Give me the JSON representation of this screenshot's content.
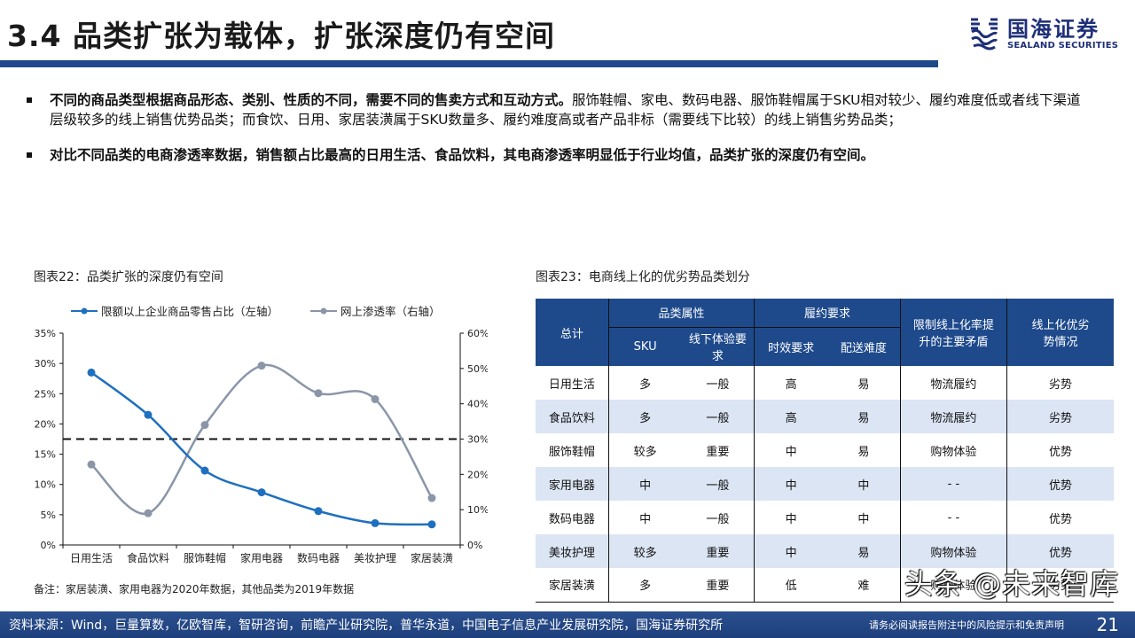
{
  "header": {
    "title": "3.4 品类扩张为载体，扩张深度仍有空间",
    "logo_cn": "国海证券",
    "logo_en": "SEALAND SECURITIES",
    "accent_color": "#1e4a8c"
  },
  "bullets": [
    {
      "bold": "不同的商品类型根据商品形态、类别、性质的不同，需要不同的售卖方式和互动方式。",
      "text": "服饰鞋帽、家电、数码电器、服饰鞋帽属于SKU相对较少、履约难度低或者线下渠道层级较多的线上销售优势品类；而食饮、日用、家居装潢属于SKU数量多、履约难度高或者产品非标（需要线下比较）的线上销售劣势品类；"
    },
    {
      "bold": "对比不同品类的电商渗透率数据，销售额占比最高的日用生活、食品饮料，其电商渗透率明显低于行业均值，品类扩张的深度仍有空间。",
      "text": ""
    }
  ],
  "figure22": {
    "title": "图表22：品类扩张的深度仍有空间",
    "note": "备注：家居装潢、家用电器为2020年数据，其他品类为2019年数据"
  },
  "chart_data": {
    "type": "line",
    "title": "图表22：品类扩张的深度仍有空间",
    "categories": [
      "日用生活",
      "食品饮料",
      "服饰鞋帽",
      "家用电器",
      "数码电器",
      "美妆护理",
      "家居装潢"
    ],
    "series": [
      {
        "name": "限额以上企业商品零售占比（左轴）",
        "axis": "left",
        "color": "#1f6fc0",
        "values": [
          28.5,
          21.5,
          12.3,
          8.7,
          5.6,
          3.6,
          3.4
        ]
      },
      {
        "name": "网上渗透率（右轴）",
        "axis": "right",
        "color": "#8a96a8",
        "values": [
          22.8,
          9.0,
          34.0,
          50.8,
          43.0,
          41.3,
          13.3
        ]
      }
    ],
    "reference_line": {
      "axis": "right",
      "value": 30,
      "style": "dashed"
    },
    "left_axis": {
      "ylim": [
        0,
        35
      ],
      "ticks": [
        "0%",
        "5%",
        "10%",
        "15%",
        "20%",
        "25%",
        "30%",
        "35%"
      ]
    },
    "right_axis": {
      "ylim": [
        0,
        60
      ],
      "ticks": [
        "0%",
        "10%",
        "20%",
        "30%",
        "40%",
        "50%",
        "60%"
      ]
    },
    "legend_position": "top",
    "grid": false,
    "xlabel": "",
    "ylabel": ""
  },
  "figure23": {
    "title": "图表23：电商线上化的优劣势品类划分",
    "headers": {
      "total": "总计",
      "group_attr": "品类属性",
      "group_fulfill": "履约要求",
      "sku": "SKU",
      "offline": "线下体验要求",
      "timeliness": "时效要求",
      "delivery": "配送难度",
      "constraint": "限制线上化率提升的主要矛盾",
      "advantage": "线上化优劣势情况"
    },
    "rows": [
      [
        "日用生活",
        "多",
        "一般",
        "高",
        "易",
        "物流履约",
        "劣势"
      ],
      [
        "食品饮料",
        "多",
        "一般",
        "高",
        "易",
        "物流履约",
        "劣势"
      ],
      [
        "服饰鞋帽",
        "较多",
        "重要",
        "中",
        "易",
        "购物体验",
        "优势"
      ],
      [
        "家用电器",
        "中",
        "一般",
        "中",
        "中",
        "- -",
        "优势"
      ],
      [
        "数码电器",
        "中",
        "一般",
        "中",
        "中",
        "- -",
        "优势"
      ],
      [
        "美妆护理",
        "较多",
        "重要",
        "中",
        "易",
        "购物体验",
        "优势"
      ],
      [
        "家居装潢",
        "多",
        "重要",
        "低",
        "难",
        "购物体验",
        "劣势"
      ]
    ]
  },
  "footer": {
    "source": "资料来源：Wind，巨量算数，亿欧智库，智研咨询，前瞻产业研究院，普华永道，中国电子信息产业发展研究院，国海证券研究所",
    "disclaimer": "请务必阅读报告附注中的风险提示和免责声明",
    "page": "21"
  },
  "watermark": "头条 @未来智库"
}
